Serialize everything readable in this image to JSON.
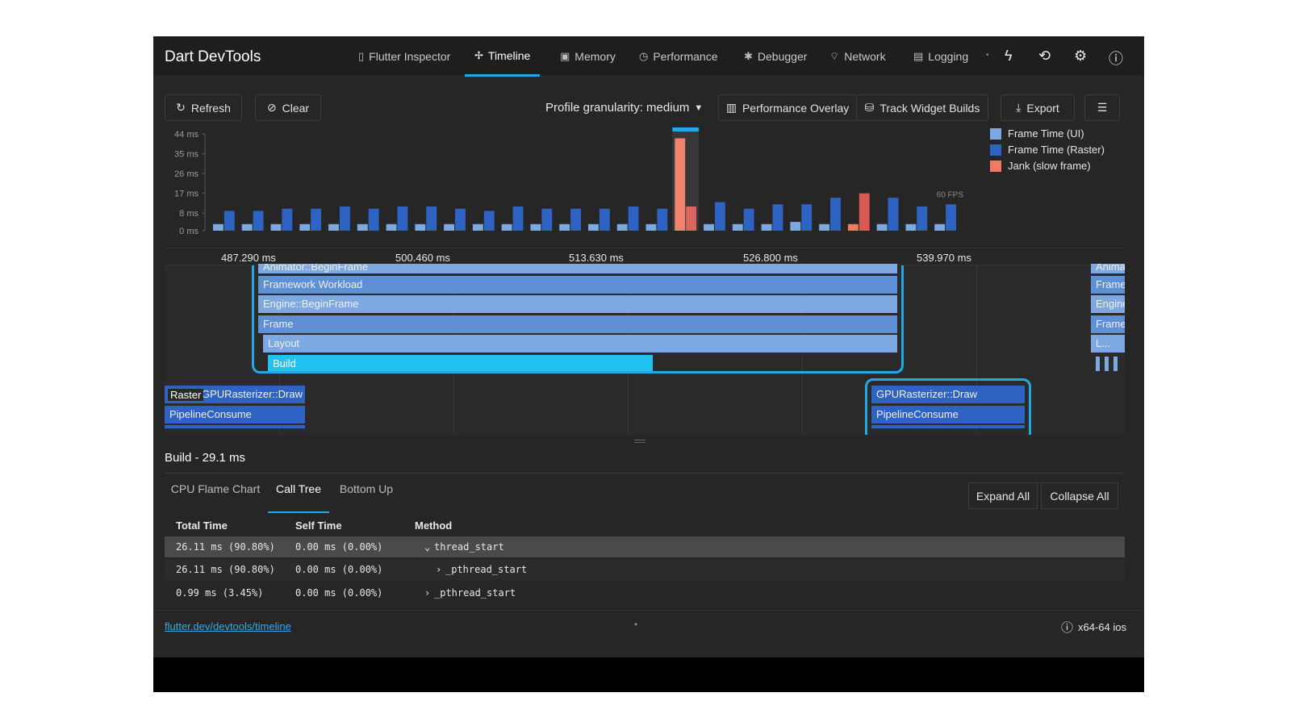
{
  "app": {
    "title": "Dart DevTools"
  },
  "nav": [
    {
      "label": "Flutter Inspector",
      "icon": "phone-icon"
    },
    {
      "label": "Timeline",
      "icon": "timeline-icon"
    },
    {
      "label": "Memory",
      "icon": "memory-icon"
    },
    {
      "label": "Performance",
      "icon": "performance-icon"
    },
    {
      "label": "Debugger",
      "icon": "debugger-icon"
    },
    {
      "label": "Network",
      "icon": "network-icon"
    },
    {
      "label": "Logging",
      "icon": "logging-icon"
    }
  ],
  "nav_active": "Timeline",
  "toolbar": {
    "refresh": "Refresh",
    "clear": "Clear",
    "granularity": "Profile granularity: medium",
    "performance_overlay": "Performance Overlay",
    "track_widget_builds": "Track Widget Builds",
    "export": "Export"
  },
  "legend": {
    "ui": "Frame Time (UI)",
    "raster": "Frame Time (Raster)",
    "jank": "Jank (slow frame)"
  },
  "colors": {
    "ui": "#7ea8e2",
    "raster": "#2e63c4",
    "jank": "#f07a62",
    "accent": "#22a9e4"
  },
  "chart_data": {
    "type": "bar",
    "ylabel": "",
    "y_ticks": [
      "44 ms",
      "35 ms",
      "26 ms",
      "17 ms",
      "8 ms",
      "0 ms"
    ],
    "ylim": [
      0,
      44
    ],
    "fps_label": "60 FPS",
    "fps_threshold_ms": 16.7,
    "series": [
      {
        "name": "Frame Time (UI)",
        "values": [
          3,
          3,
          3,
          3,
          3,
          3,
          3,
          3,
          3,
          3,
          3,
          3,
          3,
          3,
          3,
          3,
          42,
          3,
          3,
          3,
          4,
          3,
          3,
          3,
          3,
          3
        ]
      },
      {
        "name": "Frame Time (Raster)",
        "values": [
          9,
          9,
          10,
          10,
          11,
          10,
          11,
          11,
          10,
          9,
          11,
          10,
          10,
          10,
          11,
          10,
          11,
          13,
          10,
          12,
          12,
          15,
          17,
          15,
          11,
          12
        ]
      }
    ],
    "jank_frames": [
      16,
      22
    ]
  },
  "ruler": [
    "487.290 ms",
    "500.460 ms",
    "513.630 ms",
    "526.800 ms",
    "539.970 ms"
  ],
  "events": {
    "ui": [
      "Animator::BeginFrame",
      "Framework Workload",
      "Engine::BeginFrame",
      "Frame",
      "Layout",
      "Build"
    ],
    "ui_right": [
      "Animat",
      "Framew",
      "Engine:",
      "Frame",
      "L..."
    ],
    "raster_label": "Raster",
    "raster_left": [
      "GPURasterizer::Draw",
      "PipelineConsume"
    ],
    "raster_right": [
      "GPURasterizer::Draw",
      "PipelineConsume"
    ]
  },
  "details": {
    "title": "Build - 29.1 ms",
    "tabs": [
      "CPU Flame Chart",
      "Call Tree",
      "Bottom Up"
    ],
    "active_tab": "Call Tree",
    "expand_all": "Expand All",
    "collapse_all": "Collapse All",
    "columns": [
      "Total Time",
      "Self Time",
      "Method"
    ],
    "rows": [
      {
        "total": "26.11 ms (90.80%)",
        "self": "0.00 ms (0.00%)",
        "method": "thread_start",
        "arrow": "⌄",
        "indent": 0
      },
      {
        "total": "26.11 ms (90.80%)",
        "self": "0.00 ms (0.00%)",
        "method": "_pthread_start",
        "arrow": "›",
        "indent": 1
      },
      {
        "total": "0.99 ms (3.45%)",
        "self": "0.00 ms (0.00%)",
        "method": "_pthread_start",
        "arrow": "›",
        "indent": 0
      }
    ]
  },
  "footer": {
    "link": "flutter.dev/devtools/timeline",
    "platform": "x64-64 ios"
  }
}
